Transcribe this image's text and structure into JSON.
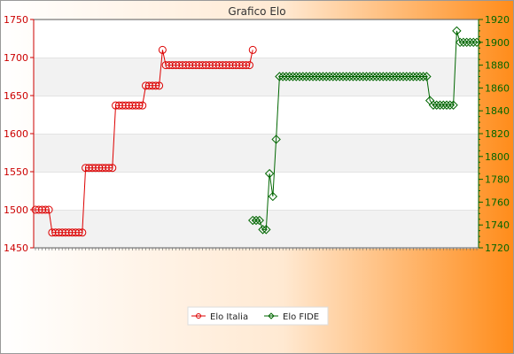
{
  "chart_data": {
    "type": "line",
    "title": "Grafico Elo",
    "colors": {
      "left_axis": "#cc0000",
      "right_axis": "#006600",
      "series_italia": "#dd0000",
      "series_fide": "#006600",
      "background_left": "#ffffff",
      "background_right": "#ff8c1a",
      "band": "#f2f2f2"
    },
    "y_left": {
      "range": [
        1450,
        1750
      ],
      "ticks": [
        "1450",
        "1500",
        "1550",
        "1600",
        "1650",
        "1700",
        "1750"
      ]
    },
    "y_right": {
      "range": [
        1720,
        1920
      ],
      "ticks": [
        "1720",
        "1740",
        "1760",
        "1780",
        "1800",
        "1820",
        "1840",
        "1860",
        "1880",
        "1900",
        "1920"
      ]
    },
    "x_point_count": 133,
    "legend": {
      "placement": "bottom-center",
      "entries": [
        "Elo Italia",
        "Elo FIDE"
      ]
    },
    "series": [
      {
        "name": "Elo Italia",
        "axis": "left",
        "marker": "circle",
        "segments": [
          {
            "start": 0,
            "count": 5,
            "value": 1500
          },
          {
            "start": 5,
            "count": 10,
            "value": 1470
          },
          {
            "start": 15,
            "count": 9,
            "value": 1555
          },
          {
            "start": 24,
            "count": 9,
            "value": 1637
          },
          {
            "start": 33,
            "count": 5,
            "value": 1663
          },
          {
            "start": 38,
            "count": 1,
            "value": 1710
          },
          {
            "start": 39,
            "count": 26,
            "value": 1690
          },
          {
            "start": 65,
            "count": 1,
            "value": 1710
          }
        ]
      },
      {
        "name": "Elo FIDE",
        "axis": "right",
        "marker": "diamond",
        "segments": [
          {
            "start": 65,
            "count": 3,
            "value": 1744
          },
          {
            "start": 68,
            "count": 2,
            "value": 1736
          },
          {
            "start": 70,
            "count": 1,
            "value": 1785
          },
          {
            "start": 71,
            "count": 1,
            "value": 1765
          },
          {
            "start": 72,
            "count": 1,
            "value": 1815
          },
          {
            "start": 73,
            "count": 45,
            "value": 1870
          },
          {
            "start": 118,
            "count": 1,
            "value": 1849
          },
          {
            "start": 119,
            "count": 7,
            "value": 1845
          },
          {
            "start": 126,
            "count": 1,
            "value": 1910
          },
          {
            "start": 127,
            "count": 6,
            "value": 1900
          }
        ]
      }
    ]
  }
}
